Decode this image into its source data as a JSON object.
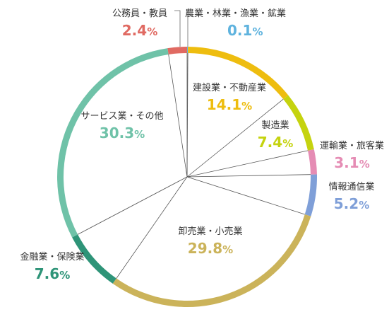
{
  "chart_data": {
    "type": "pie",
    "slices": [
      {
        "name": "農業・林業・漁業・鉱業",
        "value": 0.1,
        "label": "0.1",
        "color": "#5fb3de"
      },
      {
        "name": "建設業・不動産業",
        "value": 14.1,
        "label": "14.1",
        "color": "#eebd0f"
      },
      {
        "name": "製造業",
        "value": 7.4,
        "label": "7.4",
        "color": "#c5d30f"
      },
      {
        "name": "運輸業・旅客業",
        "value": 3.1,
        "label": "3.1",
        "color": "#e58cb4"
      },
      {
        "name": "情報通信業",
        "value": 5.2,
        "label": "5.2",
        "color": "#7f9fd8"
      },
      {
        "name": "卸売業・小売業",
        "value": 29.8,
        "label": "29.8",
        "color": "#cbb35a"
      },
      {
        "name": "金融業・保険業",
        "value": 7.6,
        "label": "7.6",
        "color": "#2e9478"
      },
      {
        "name": "サービス業・その他",
        "value": 30.3,
        "label": "30.3",
        "color": "#6fc2a8"
      },
      {
        "name": "公務員・教員",
        "value": 2.4,
        "label": "2.4",
        "color": "#e06a62"
      }
    ],
    "unit": "%"
  }
}
